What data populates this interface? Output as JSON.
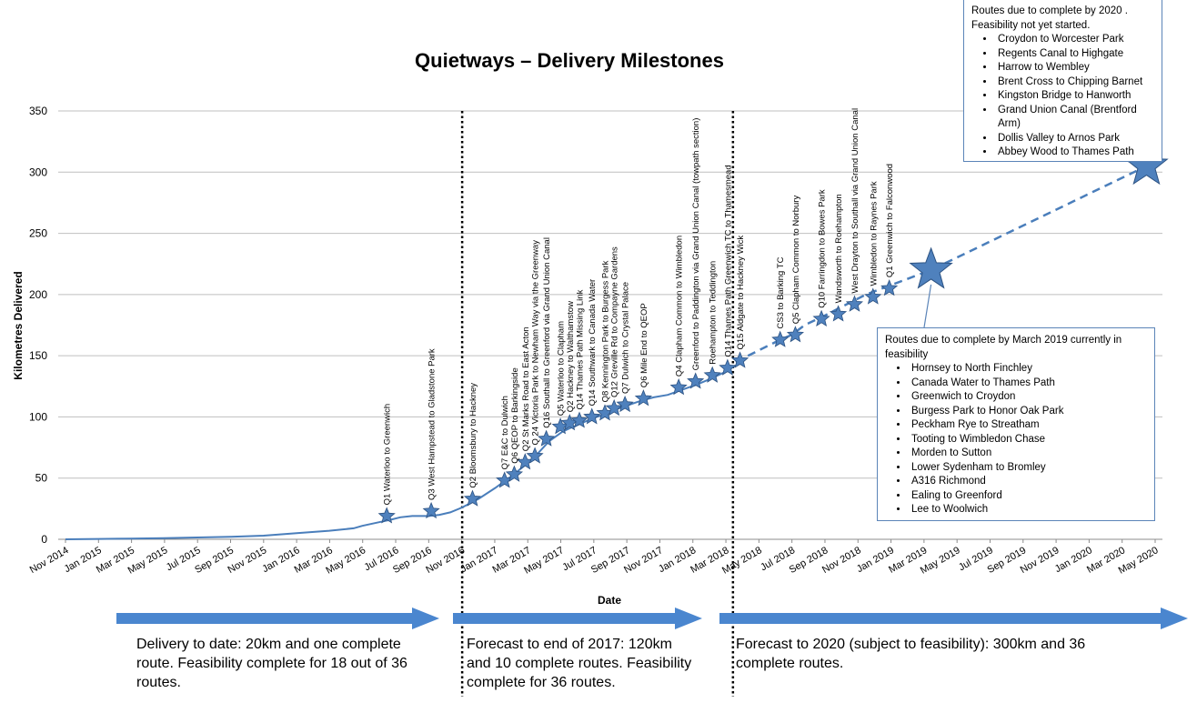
{
  "chart_data": {
    "type": "line",
    "title": "Quietways – Delivery Milestones",
    "xlabel": "Date",
    "ylabel": "Kilometres Delivered",
    "ylim": [
      0,
      350
    ],
    "yticks": [
      0,
      50,
      100,
      150,
      200,
      250,
      300,
      350
    ],
    "xrange": [
      "2014-11-01",
      "2020-05-01"
    ],
    "xtick_labels": [
      "Nov 2014",
      "Jan 2015",
      "Mar 2015",
      "May 2015",
      "Jul 2015",
      "Sep 2015",
      "Nov 2015",
      "Jan 2016",
      "Mar 2016",
      "May 2016",
      "Jul 2016",
      "Sep 2016",
      "Nov 2016",
      "Jan 2017",
      "Mar 2017",
      "May 2017",
      "Jul 2017",
      "Sep 2017",
      "Nov 2017",
      "Jan 2018",
      "Mar 2018",
      "May 2018",
      "Jul 2018",
      "Sep 2018",
      "Nov 2018",
      "Jan 2019",
      "Mar 2019",
      "May 2019",
      "Jul 2019",
      "Sep 2019",
      "Nov 2019",
      "Jan 2020",
      "Mar 2020",
      "May 2020"
    ],
    "grid": true,
    "series": [
      {
        "style": "solid",
        "points": [
          [
            "2014-11-01",
            0
          ],
          [
            "2015-01-01",
            0.3
          ],
          [
            "2015-03-01",
            0.6
          ],
          [
            "2015-05-01",
            1
          ],
          [
            "2015-07-01",
            1.5
          ],
          [
            "2015-09-01",
            2
          ],
          [
            "2015-11-01",
            3
          ],
          [
            "2016-01-01",
            5
          ],
          [
            "2016-03-01",
            7
          ],
          [
            "2016-04-15",
            9
          ],
          [
            "2016-05-01",
            11
          ],
          [
            "2016-06-01",
            14
          ],
          [
            "2016-06-22",
            16
          ],
          [
            "2016-07-10",
            18
          ],
          [
            "2016-08-01",
            19
          ],
          [
            "2016-09-01",
            19
          ],
          [
            "2016-09-20",
            20
          ],
          [
            "2016-10-10",
            22
          ],
          [
            "2016-11-01",
            26
          ],
          [
            "2016-12-01",
            33
          ],
          [
            "2017-01-01",
            42
          ],
          [
            "2017-02-01",
            52
          ],
          [
            "2017-03-01",
            62
          ],
          [
            "2017-03-20",
            70
          ],
          [
            "2017-04-10",
            80
          ],
          [
            "2017-05-05",
            88
          ],
          [
            "2017-05-20",
            91
          ],
          [
            "2017-06-05",
            94
          ],
          [
            "2017-06-25",
            98
          ],
          [
            "2017-07-20",
            102
          ],
          [
            "2017-08-10",
            106
          ],
          [
            "2017-08-30",
            109
          ],
          [
            "2017-09-25",
            113
          ],
          [
            "2017-10-20",
            116
          ],
          [
            "2017-11-15",
            118
          ],
          [
            "2017-12-10",
            122
          ],
          [
            "2018-01-05",
            126
          ],
          [
            "2018-02-01",
            131
          ],
          [
            "2018-02-25",
            136
          ],
          [
            "2018-03-20",
            142
          ]
        ]
      },
      {
        "style": "dashed",
        "points": [
          [
            "2018-03-20",
            145
          ],
          [
            "2018-06-10",
            163
          ],
          [
            "2018-07-01",
            167
          ],
          [
            "2018-07-25",
            175
          ],
          [
            "2018-09-01",
            183
          ],
          [
            "2018-10-15",
            193
          ],
          [
            "2018-11-15",
            200
          ],
          [
            "2018-12-15",
            205
          ],
          [
            "2019-03-15",
            220
          ],
          [
            "2020-04-15",
            305
          ]
        ]
      }
    ],
    "milestones": [
      {
        "date": "2016-06-15",
        "km": 19,
        "label": "Q1 Waterloo to Greenwich"
      },
      {
        "date": "2016-09-05",
        "km": 23,
        "label": "Q3 West Hampstead to Gladstone Park"
      },
      {
        "date": "2016-11-20",
        "km": 33,
        "label": "Q2 Bloomsbury to Hackney"
      },
      {
        "date": "2017-01-18",
        "km": 48,
        "label": "Q7 E&C to Dulwich"
      },
      {
        "date": "2017-02-05",
        "km": 53,
        "label": "Q6 QEOP to Barkingside"
      },
      {
        "date": "2017-02-25",
        "km": 63,
        "label": "Q2 St Marks Road to East Acton"
      },
      {
        "date": "2017-03-15",
        "km": 68,
        "label": "Q 24 Victoria Park to Newham Way via the Greenway"
      },
      {
        "date": "2017-04-05",
        "km": 82,
        "label": "Q16 Southall to Greenford via Grand Union Canal"
      },
      {
        "date": "2017-05-01",
        "km": 92,
        "label": "Q5 Waterloo to Clapham"
      },
      {
        "date": "2017-05-18",
        "km": 95,
        "label": "Q2 Hackney to Walthamstow"
      },
      {
        "date": "2017-06-05",
        "km": 97,
        "label": "Q14 Thames Path Missing Link"
      },
      {
        "date": "2017-06-28",
        "km": 100,
        "label": "Q14 Southwark to Canada Water"
      },
      {
        "date": "2017-07-22",
        "km": 103,
        "label": "Q8 Kennington Park to Burgess Park"
      },
      {
        "date": "2017-08-08",
        "km": 107,
        "label": "Q12 Greville Rd to Compayne Gardens"
      },
      {
        "date": "2017-08-28",
        "km": 110,
        "label": "Q7 Dulwich to Crystal Palace"
      },
      {
        "date": "2017-10-01",
        "km": 115,
        "label": "Q6 Mile End to QEOP"
      },
      {
        "date": "2017-12-05",
        "km": 124,
        "label": "Q4 Clapham Common to Wimbledon"
      },
      {
        "date": "2018-01-05",
        "km": 129,
        "label": "Greenford to Paddington via Grand Union Canal (towpath section)"
      },
      {
        "date": "2018-02-05",
        "km": 134,
        "label": "Roehampton to Teddington"
      },
      {
        "date": "2018-03-05",
        "km": 140,
        "label": "Q14 Thames Path Greenwich TC to Thamesmead"
      },
      {
        "date": "2018-03-28",
        "km": 146,
        "label": "Q15 Aldgate to Hackney Wick"
      },
      {
        "date": "2018-06-10",
        "km": 163,
        "label": "CS3 to Barking TC"
      },
      {
        "date": "2018-07-08",
        "km": 167,
        "label": "Q5 Clapham Common to Norbury"
      },
      {
        "date": "2018-08-25",
        "km": 180,
        "label": "Q10 Farringdon to Bowes Park"
      },
      {
        "date": "2018-09-25",
        "km": 184,
        "label": "Wandsworth to Roehampton"
      },
      {
        "date": "2018-10-25",
        "km": 192,
        "label": "West Drayton to Southall via Grand Union Canal"
      },
      {
        "date": "2018-11-28",
        "km": 198,
        "label": "Wimbledon to Raynes Park"
      },
      {
        "date": "2018-12-28",
        "km": 205,
        "label": "Q1 Greenwich to Falconwood"
      }
    ],
    "big_stars": [
      {
        "date": "2019-03-15",
        "km": 220
      },
      {
        "date": "2020-04-15",
        "km": 305
      }
    ],
    "phase_dividers": [
      "2016-11-01",
      "2018-03-15"
    ]
  },
  "callout_2020": {
    "heading": "Routes due to complete by 2020 .  Feasibility not yet started.",
    "items": [
      "Croydon to Worcester Park",
      "Regents Canal to Highgate",
      "Harrow to Wembley",
      "Brent Cross to Chipping Barnet",
      "Kingston Bridge to Hanworth",
      "Grand Union Canal (Brentford Arm)",
      "Dollis Valley to Arnos Park",
      "Abbey Wood to Thames Path"
    ]
  },
  "callout_2019": {
    "heading": "Routes due to complete by  March 2019 currently in feasibility",
    "items": [
      "Hornsey to North Finchley",
      "Canada Water to Thames Path",
      "Greenwich to Croydon",
      "Burgess Park to Honor Oak Park",
      "Peckham Rye to Streatham",
      "Tooting to Wimbledon Chase",
      "Morden to Sutton",
      "Lower Sydenham to Bromley",
      "A316 Richmond",
      "Ealing to Greenford",
      "Lee to Woolwich"
    ]
  },
  "phases": [
    {
      "text": "Delivery to date: 20km and one complete route. Feasibility complete for 18 out of 36 routes."
    },
    {
      "text": "Forecast to end of 2017: 120km and 10 complete routes. Feasibility complete for 36 routes."
    },
    {
      "text": "Forecast to 2020 (subject to feasibility): 300km and 36 complete routes."
    }
  ],
  "colors": {
    "line": "#4a7ebb",
    "star_fill": "#4f81bd",
    "star_stroke": "#2c5282",
    "arrow": "#4a86cf",
    "callout_border": "#5b84b8",
    "grid": "#bfbfbf"
  }
}
